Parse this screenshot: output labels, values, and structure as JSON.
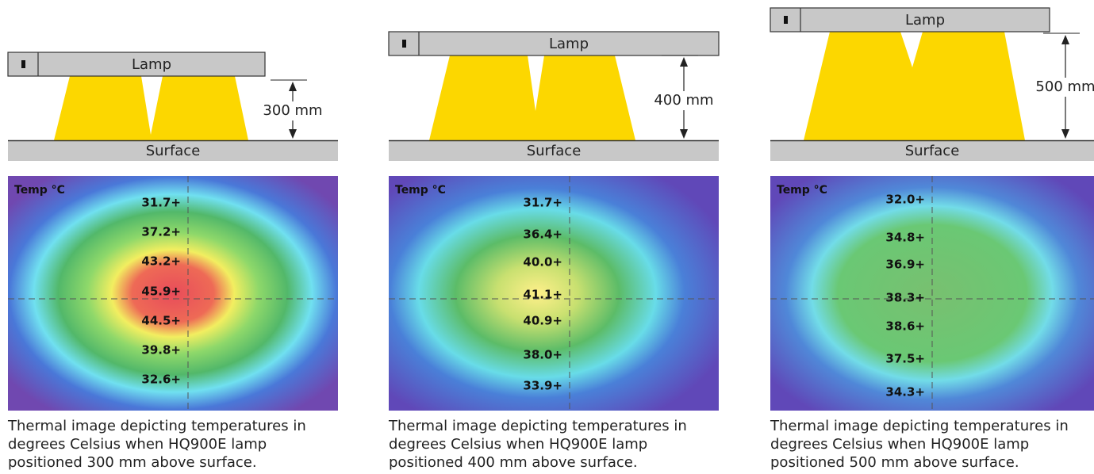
{
  "panels": [
    {
      "lamp": "Lamp",
      "distance": "300 mm",
      "surface": "Surface",
      "legend": "Temp °C",
      "temperatures": [
        "31.7+",
        "37.2+",
        "43.2+",
        "45.9+",
        "44.5+",
        "39.8+",
        "32.6+"
      ],
      "caption": "Thermal image depicting temperatures in degrees Celsius when HQ900E lamp positioned 300 mm above surface."
    },
    {
      "lamp": "Lamp",
      "distance": "400 mm",
      "surface": "Surface",
      "legend": "Temp °C",
      "temperatures": [
        "31.7+",
        "36.4+",
        "40.0+",
        "41.1+",
        "40.9+",
        "38.0+",
        "33.9+"
      ],
      "caption": "Thermal image depicting temperatures in degrees Celsius when HQ900E lamp positioned 400 mm above surface."
    },
    {
      "lamp": "Lamp",
      "distance": "500 mm",
      "surface": "Surface",
      "legend": "Temp °C",
      "temperatures": [
        "32.0+",
        "34.8+",
        "36.9+",
        "38.3+",
        "38.6+",
        "37.5+",
        "34.3+"
      ],
      "caption": "Thermal image depicting temperatures in degrees Celsius when HQ900E lamp positioned 500 mm above surface."
    }
  ]
}
